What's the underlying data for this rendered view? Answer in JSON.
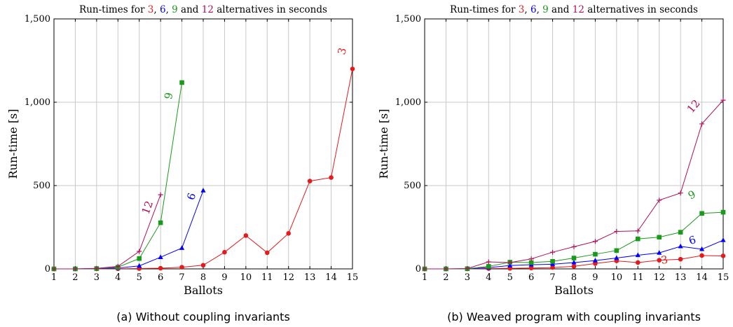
{
  "chart_data": [
    {
      "type": "line",
      "title": {
        "prefix": "Run-times for ",
        "parts": [
          {
            "text": "3",
            "color": "#e41a1c"
          },
          {
            "text": ", ",
            "color": "#000000"
          },
          {
            "text": "6",
            "color": "#0000ff"
          },
          {
            "text": ", ",
            "color": "#000000"
          },
          {
            "text": "9",
            "color": "#1a9a1a"
          },
          {
            "text": " and ",
            "color": "#000000"
          },
          {
            "text": "12",
            "color": "#b0105a"
          }
        ],
        "suffix": " alternatives in seconds"
      },
      "xlabel": "Ballots",
      "ylabel": "Run-time [s]",
      "caption": "(a) Without coupling invariants",
      "xlim": [
        1,
        15
      ],
      "ylim": [
        0,
        1500
      ],
      "xticks": [
        1,
        2,
        3,
        4,
        5,
        6,
        7,
        8,
        9,
        10,
        11,
        12,
        13,
        14,
        15
      ],
      "yticks": [
        0,
        500,
        1000,
        1500
      ],
      "ytick_labels": [
        "0",
        "500",
        "1,000",
        "1,500"
      ],
      "grid": true,
      "series": [
        {
          "name": "3",
          "color": "#e41a1c",
          "marker": "circle",
          "x": [
            1,
            2,
            3,
            4,
            5,
            6,
            7,
            8,
            9,
            10,
            11,
            12,
            13,
            14,
            15
          ],
          "y": [
            0,
            0,
            0,
            1,
            2,
            4,
            10,
            22,
            100,
            200,
            97,
            213,
            527,
            548,
            1200
          ]
        },
        {
          "name": "6",
          "color": "#0000ff",
          "marker": "triangle",
          "x": [
            1,
            2,
            3,
            4,
            5,
            6,
            7,
            8
          ],
          "y": [
            0,
            0,
            1,
            5,
            18,
            70,
            125,
            470
          ]
        },
        {
          "name": "9",
          "color": "#1a9a1a",
          "marker": "square",
          "x": [
            1,
            2,
            3,
            4,
            5,
            6,
            7
          ],
          "y": [
            0,
            0,
            2,
            10,
            62,
            277,
            1118
          ]
        },
        {
          "name": "12",
          "color": "#b0105a",
          "marker": "plus",
          "x": [
            1,
            2,
            3,
            4,
            5,
            6
          ],
          "y": [
            0,
            0,
            3,
            15,
            105,
            445
          ]
        }
      ]
    },
    {
      "type": "line",
      "title": {
        "prefix": "Run-times for ",
        "parts": [
          {
            "text": "3",
            "color": "#e41a1c"
          },
          {
            "text": ", ",
            "color": "#000000"
          },
          {
            "text": "6",
            "color": "#0000ff"
          },
          {
            "text": ", ",
            "color": "#000000"
          },
          {
            "text": "9",
            "color": "#1a9a1a"
          },
          {
            "text": " and ",
            "color": "#000000"
          },
          {
            "text": "12",
            "color": "#b0105a"
          }
        ],
        "suffix": " alternatives in seconds"
      },
      "xlabel": "Ballots",
      "ylabel": "Run-time [s]",
      "caption": "(b) Weaved program with coupling invariants",
      "xlim": [
        1,
        15
      ],
      "ylim": [
        0,
        1500
      ],
      "xticks": [
        1,
        2,
        3,
        4,
        5,
        6,
        7,
        8,
        9,
        10,
        11,
        12,
        13,
        14,
        15
      ],
      "yticks": [
        0,
        500,
        1000,
        1500
      ],
      "ytick_labels": [
        "0",
        "500",
        "1,000",
        "1,500"
      ],
      "grid": true,
      "series": [
        {
          "name": "3",
          "color": "#e41a1c",
          "marker": "circle",
          "x": [
            1,
            2,
            3,
            4,
            5,
            6,
            7,
            8,
            9,
            10,
            11,
            12,
            13,
            14,
            15
          ],
          "y": [
            0,
            0,
            0,
            2,
            3,
            5,
            8,
            15,
            32,
            48,
            38,
            52,
            58,
            80,
            78
          ]
        },
        {
          "name": "6",
          "color": "#0000ff",
          "marker": "triangle",
          "x": [
            1,
            2,
            3,
            4,
            5,
            6,
            7,
            8,
            9,
            10,
            11,
            12,
            13,
            14,
            15
          ],
          "y": [
            0,
            0,
            0,
            8,
            20,
            25,
            28,
            38,
            50,
            65,
            82,
            96,
            135,
            118,
            172
          ]
        },
        {
          "name": "9",
          "color": "#1a9a1a",
          "marker": "square",
          "x": [
            1,
            2,
            3,
            4,
            5,
            6,
            7,
            8,
            9,
            10,
            11,
            12,
            13,
            14,
            15
          ],
          "y": [
            0,
            0,
            1,
            15,
            40,
            38,
            45,
            65,
            88,
            110,
            180,
            190,
            220,
            333,
            340
          ]
        },
        {
          "name": "12",
          "color": "#b0105a",
          "marker": "plus",
          "x": [
            1,
            2,
            3,
            4,
            5,
            6,
            7,
            8,
            9,
            10,
            11,
            12,
            13,
            14,
            15
          ],
          "y": [
            0,
            0,
            2,
            42,
            38,
            60,
            100,
            133,
            165,
            225,
            228,
            412,
            455,
            870,
            1012
          ]
        }
      ]
    }
  ]
}
